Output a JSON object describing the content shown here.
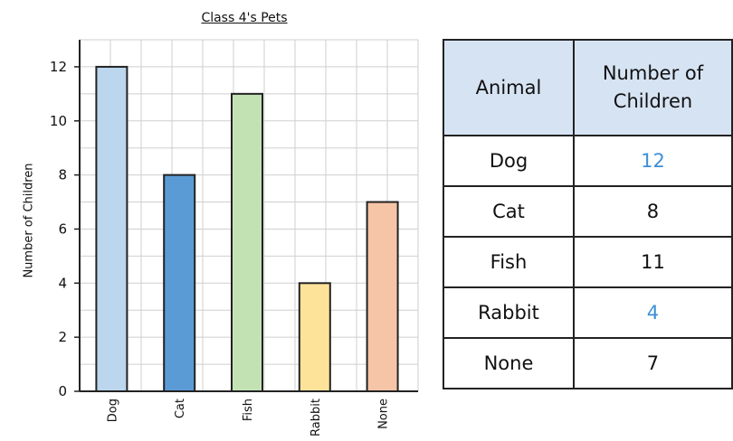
{
  "chart_data": {
    "type": "bar",
    "title": "Class 4's Pets",
    "ylabel": "Number of Children",
    "xlabel": "",
    "categories": [
      "Dog",
      "Cat",
      "Fish",
      "Rabbit",
      "None"
    ],
    "values": [
      12,
      8,
      11,
      4,
      7
    ],
    "colors": [
      "#bcd6ee",
      "#5b9bd5",
      "#c3e2b4",
      "#fde39a",
      "#f6c4a6"
    ],
    "ylim": [
      0,
      13
    ],
    "yticks": [
      0,
      2,
      4,
      6,
      8,
      10,
      12
    ],
    "grid": true
  },
  "table": {
    "headers": [
      "Animal",
      "Number of Children"
    ],
    "rows": [
      {
        "animal": "Dog",
        "count": "12",
        "highlight": true
      },
      {
        "animal": "Cat",
        "count": "8",
        "highlight": false
      },
      {
        "animal": "Fish",
        "count": "11",
        "highlight": false
      },
      {
        "animal": "Rabbit",
        "count": "4",
        "highlight": true
      },
      {
        "animal": "None",
        "count": "7",
        "highlight": false
      }
    ]
  }
}
